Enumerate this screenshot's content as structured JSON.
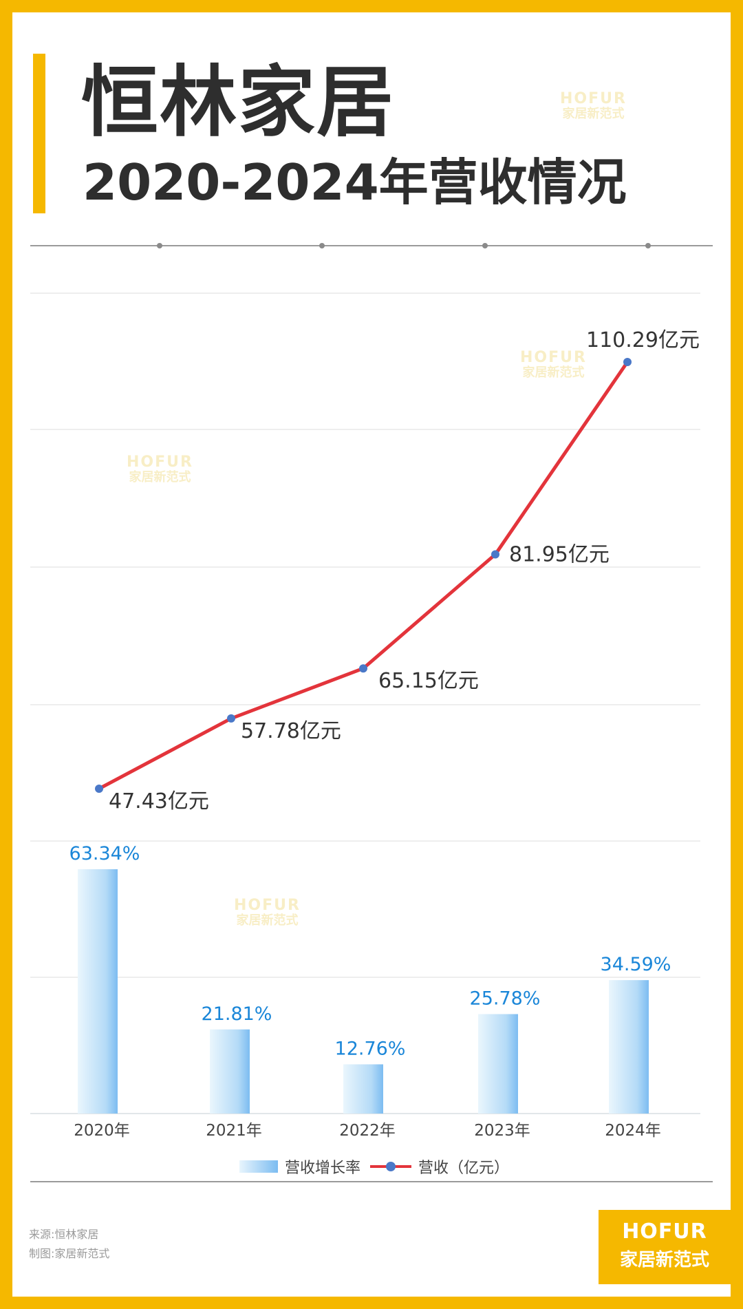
{
  "header": {
    "brand_title": "恒林家居",
    "sub_title": "2020-2024年营收情况"
  },
  "watermark": {
    "line1": "HOFUR",
    "line2": "家居新范式"
  },
  "footer": {
    "source": "来源:恒林家居",
    "maker": "制图:家居新范式"
  },
  "logo": {
    "line1": "HOFUR",
    "line2": "家居新范式"
  },
  "colors": {
    "brand_yellow": "#f5b800",
    "line_red": "#e3343b",
    "point_blue": "#4a78c8",
    "bar_blue": "#7cbcf1",
    "growth_label_blue": "#1a86d8",
    "text_dark": "#2e2e2e"
  },
  "chart_data": {
    "type": "bar+line",
    "categories": [
      "2020年",
      "2021年",
      "2022年",
      "2023年",
      "2024年"
    ],
    "legend_position": "bottom",
    "grid": true,
    "series": [
      {
        "name": "营收增长率",
        "type": "bar",
        "values": [
          63.34,
          21.81,
          12.76,
          25.78,
          34.59
        ],
        "labels": [
          "63.34%",
          "21.81%",
          "12.76%",
          "25.78%",
          "34.59%"
        ]
      },
      {
        "name": "营收（亿元）",
        "type": "line",
        "values": [
          47.43,
          57.78,
          65.15,
          81.95,
          110.29
        ],
        "labels": [
          "47.43亿元",
          "57.78亿元",
          "65.15亿元",
          "81.95亿元",
          "110.29亿元"
        ]
      }
    ]
  }
}
